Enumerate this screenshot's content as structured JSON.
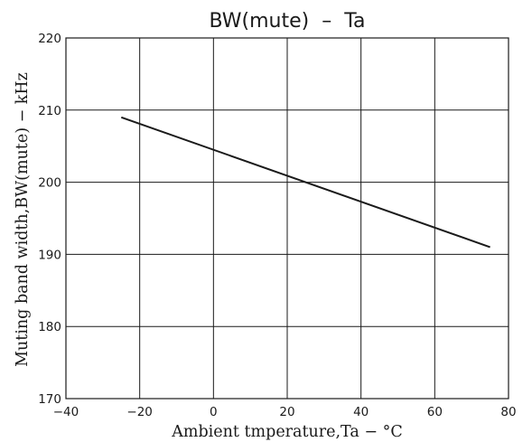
{
  "chart_data": {
    "type": "line",
    "title": "BW(mute)  –  Ta",
    "xlabel": "Ambient tmperature,Ta − °C",
    "ylabel": "Muting band width,BW(mute) − kHz",
    "xlim": [
      -40,
      80
    ],
    "ylim": [
      170,
      220
    ],
    "xticks": [
      -40,
      -20,
      0,
      20,
      40,
      60,
      80
    ],
    "yticks": [
      170,
      180,
      190,
      200,
      210,
      220
    ],
    "xtick_labels": [
      "−40",
      "−20",
      "0",
      "20",
      "40",
      "60",
      "80"
    ],
    "ytick_labels": [
      "170",
      "180",
      "190",
      "200",
      "210",
      "220"
    ],
    "grid": true,
    "series": [
      {
        "x": [
          -25,
          75
        ],
        "y": [
          209,
          191
        ]
      }
    ]
  }
}
